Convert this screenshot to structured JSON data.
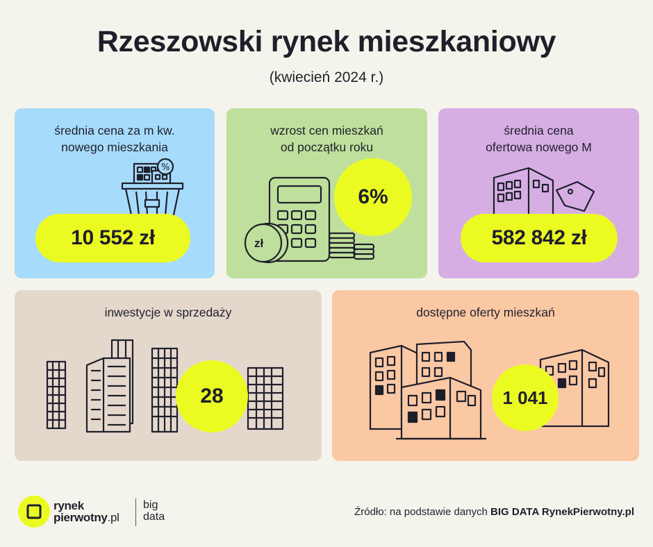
{
  "header": {
    "title": "Rzeszowski rynek mieszkaniowy",
    "subtitle": "(kwiecień 2024 r.)"
  },
  "cards": [
    {
      "label_line1": "średnia cena za m kw.",
      "label_line2": "nowego mieszkania",
      "value": "10 552 zł",
      "bg": "#a7dbfb",
      "icon": "shopping-basket-buildings-icon"
    },
    {
      "label_line1": "wzrost cen mieszkań",
      "label_line2": "od początku roku",
      "value": "6%",
      "bg": "#bfe09c",
      "icon": "calculator-coins-icon",
      "coin_label": "zł"
    },
    {
      "label_line1": "średnia cena",
      "label_line2": "ofertowa nowego M",
      "value": "582 842 zł",
      "bg": "#d6aee4",
      "icon": "building-price-tag-icon"
    },
    {
      "label_line1": "inwestycje w sprzedaży",
      "value": "28",
      "bg": "#e4d8cd",
      "icon": "tower-blocks-icon"
    },
    {
      "label_line1": "dostępne oferty mieszkań",
      "value": "1 041",
      "bg": "#fbc8a4",
      "icon": "apartment-buildings-icon"
    }
  ],
  "footer": {
    "logo_line1": "rynek",
    "logo_line2": "pierwotny",
    "logo_line2_suffix": ".pl",
    "logo_big_line1": "big",
    "logo_big_line2": "data",
    "source_prefix": "Źródło: na podstawie danych ",
    "source_bold": "BIG DATA RynekPierwotny.pl"
  },
  "colors": {
    "accent": "#ebfb22",
    "ink": "#1f1f2b",
    "background": "#f5f4ec"
  }
}
